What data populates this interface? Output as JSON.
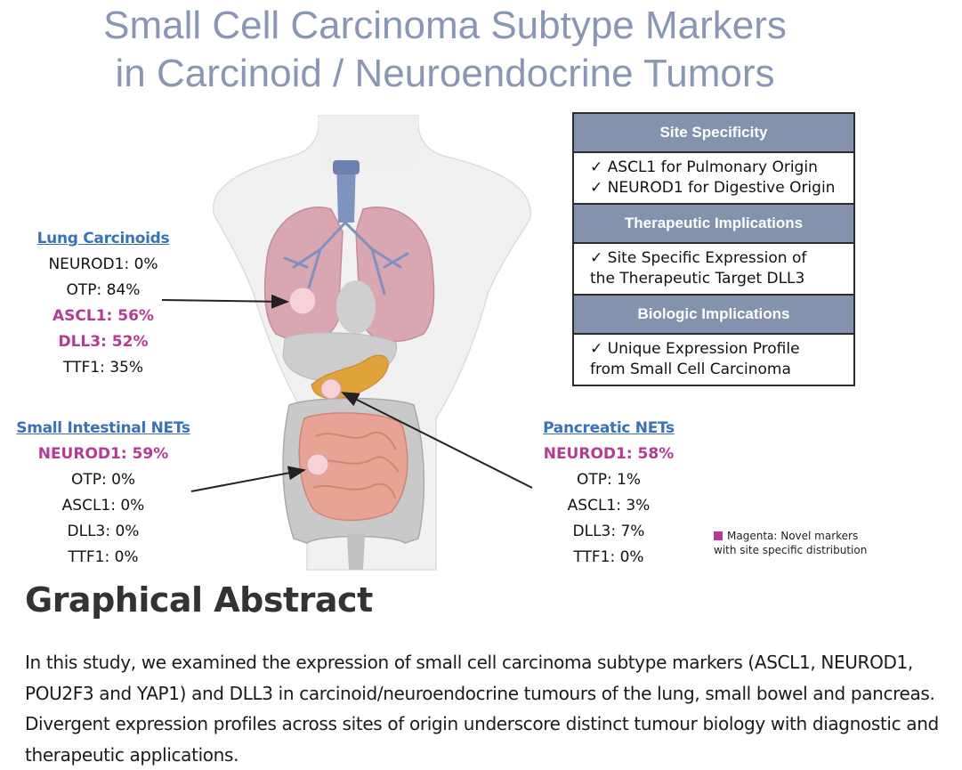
{
  "title": {
    "line1": "Small Cell Carcinoma Subtype Markers",
    "line2": "in Carcinoid / Neuroendocrine Tumors"
  },
  "lung": {
    "heading": "Lung Carcinoids",
    "markers": [
      "NEUROD1: 0%",
      "OTP: 84%",
      "ASCL1: 56%",
      "DLL3: 52%",
      "TTF1: 35%"
    ]
  },
  "small_intestine": {
    "heading": "Small Intestinal NETs",
    "markers": [
      "NEUROD1: 59%",
      "OTP: 0%",
      "ASCL1: 0%",
      "DLL3: 0%",
      "TTF1: 0%"
    ]
  },
  "pancreas": {
    "heading": "Pancreatic NETs",
    "markers": [
      "NEUROD1: 58%",
      "OTP: 1%",
      "ASCL1: 3%",
      "DLL3: 7%",
      "TTF1: 0%"
    ]
  },
  "info_box": {
    "site_heading": "Site Specificity",
    "site_line1": "✓ ASCL1 for Pulmonary Origin",
    "site_line2": "✓ NEUROD1 for Digestive Origin",
    "therapeutic_heading": "Therapeutic Implications",
    "therapeutic_line1": "✓ Site Specific Expression of",
    "therapeutic_line2": "the Therapeutic Target DLL3",
    "biologic_heading": "Biologic Implications",
    "biologic_line1": "✓ Unique Expression Profile",
    "biologic_line2": "from Small Cell Carcinoma"
  },
  "legend": {
    "line1": "Magenta: Novel markers",
    "line2": "with site specific distribution"
  },
  "graphical_abstract": {
    "heading": "Graphical Abstract",
    "text": "In this study, we examined the expression of small cell carcinoma subtype markers (ASCL1, NEUROD1, POU2F3 and YAP1) and DLL3 in carcinoid/neuroendocrine tumours of the lung, small bowel and pancreas. Divergent expression profiles across sites of origin underscore distinct tumour biology with diagnostic and therapeutic applications."
  },
  "colors": {
    "title": "#8a97b4",
    "heading": "#3a73b5",
    "novel": "#b43a93",
    "box_header": "#8592ad"
  }
}
